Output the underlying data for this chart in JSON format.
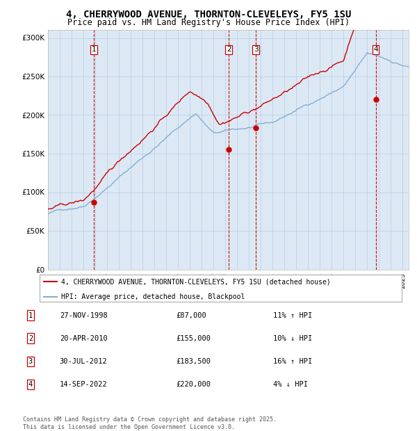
{
  "title": "4, CHERRYWOOD AVENUE, THORNTON-CLEVELEYS, FY5 1SU",
  "subtitle": "Price paid vs. HM Land Registry's House Price Index (HPI)",
  "title_fontsize": 10,
  "subtitle_fontsize": 9,
  "legend_line1": "4, CHERRYWOOD AVENUE, THORNTON-CLEVELEYS, FY5 1SU (detached house)",
  "legend_line2": "HPI: Average price, detached house, Blackpool",
  "red_color": "#cc0000",
  "blue_color": "#87aece",
  "background_color": "#dce9f5",
  "transactions": [
    {
      "id": 1,
      "date": "27-NOV-1998",
      "price": 87000,
      "pct": "11%",
      "dir": "↑",
      "x_year": 1998.9
    },
    {
      "id": 2,
      "date": "20-APR-2010",
      "price": 155000,
      "pct": "10%",
      "dir": "↓",
      "x_year": 2010.3
    },
    {
      "id": 3,
      "date": "30-JUL-2012",
      "price": 183500,
      "pct": "16%",
      "dir": "↑",
      "x_year": 2012.58
    },
    {
      "id": 4,
      "date": "14-SEP-2022",
      "price": 220000,
      "pct": "4%",
      "dir": "↓",
      "x_year": 2022.71
    }
  ],
  "footer": "Contains HM Land Registry data © Crown copyright and database right 2025.\nThis data is licensed under the Open Government Licence v3.0.",
  "ylim": [
    0,
    310000
  ],
  "xlim_start": 1995,
  "xlim_end": 2025.5
}
